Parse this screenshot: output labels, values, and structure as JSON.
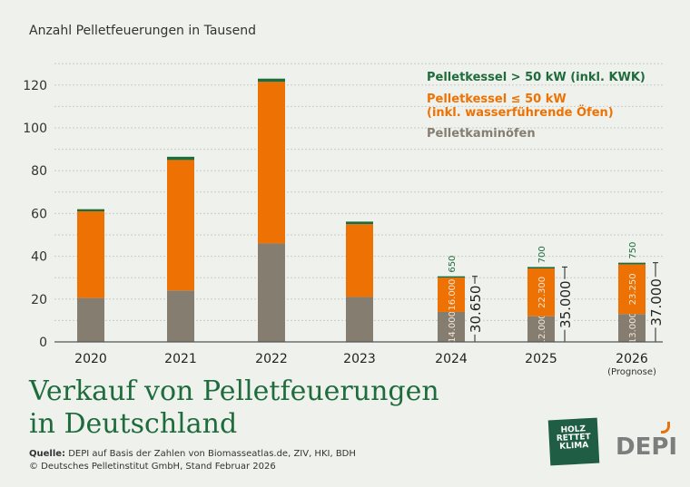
{
  "chart_data": {
    "type": "bar",
    "stacked": true,
    "title": "Verkauf von Pelletfeuerungen in Deutschland",
    "ylabel": "Anzahl Pelletfeuerungen in Tausend",
    "ylim": [
      0,
      130
    ],
    "yticks": [
      0,
      20,
      40,
      60,
      80,
      100,
      120
    ],
    "categories": [
      "2020",
      "2021",
      "2022",
      "2023",
      "2024",
      "2025",
      "2026"
    ],
    "category_notes": {
      "2026": "(Prognose)"
    },
    "series": [
      {
        "name": "Pelletkaminöfen",
        "color": "#857e70",
        "values": [
          20.5,
          24,
          46,
          21,
          14,
          12,
          13
        ],
        "labels": [
          null,
          null,
          null,
          null,
          "14.000",
          "12.000",
          "13.000"
        ]
      },
      {
        "name": "Pelletkessel ≤ 50 kW\n(inkl. wasserführende Öfen)",
        "color": "#ee7203",
        "values": [
          40.5,
          61,
          75.5,
          34,
          16,
          22.3,
          23.25
        ],
        "labels": [
          null,
          null,
          null,
          null,
          "16.000",
          "22.300",
          "23.250"
        ]
      },
      {
        "name": "Pelletkessel > 50 kW (inkl. KWK)",
        "color": "#1e6b3c",
        "values": [
          1,
          1.5,
          1.5,
          1.2,
          0.65,
          0.7,
          0.75
        ],
        "labels": [
          null,
          null,
          null,
          null,
          "650",
          "700",
          "750"
        ]
      }
    ],
    "totals": {
      "2024": "30.650",
      "2025": "35.000",
      "2026": "37.000"
    },
    "legend": {
      "placement": "top-right",
      "entries": [
        "Pelletkessel > 50 kW (inkl. KWK)",
        "Pelletkessel ≤ 50 kW",
        "(inkl. wasserführende Öfen)",
        "Pelletkaminöfen"
      ]
    },
    "grid": true
  },
  "footer": {
    "source_label": "Quelle:",
    "source_text": " DEPI auf Basis der Zahlen von Biomasseatlas.de, ZIV, HKI, BDH",
    "copyright": "© Deutsches Pelletinstitut GmbH, Stand Februar 2026",
    "title_line1": "Verkauf von Pelletfeuerungen",
    "title_line2": "in Deutschland"
  },
  "logos": {
    "holz": "HOLZ RETTET KLIMA",
    "depi": "DEPI"
  }
}
